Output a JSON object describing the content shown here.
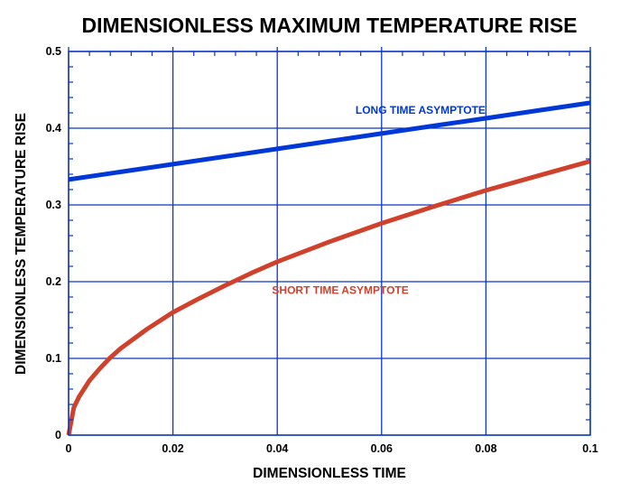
{
  "chart_data": {
    "type": "line",
    "title": "DIMENSIONLESS MAXIMUM TEMPERATURE RISE",
    "xlabel": "DIMENSIONLESS TIME",
    "ylabel": "DIMENSIONLESS TEMPERATURE RISE",
    "xlim": [
      0,
      0.1
    ],
    "ylim": [
      0,
      0.5
    ],
    "x_ticks": [
      0,
      0.02,
      0.04,
      0.06,
      0.08,
      0.1
    ],
    "x_tick_labels": [
      "0",
      "0.02",
      "0.04",
      "0.06",
      "0.08",
      "0.1"
    ],
    "y_ticks": [
      0,
      0.1,
      0.2,
      0.3,
      0.4,
      0.5
    ],
    "y_tick_labels": [
      "0",
      "0.1",
      "0.2",
      "0.3",
      "0.4",
      "0.5"
    ],
    "grid": true,
    "colors": {
      "grid": "#0a36c4",
      "long": "#0038d8",
      "short": "#d0412c"
    },
    "series": [
      {
        "name": "LONG TIME ASYMPTOTE",
        "x": [
          0,
          0.01,
          0.02,
          0.03,
          0.04,
          0.05,
          0.06,
          0.07,
          0.08,
          0.09,
          0.1
        ],
        "y": [
          0.333,
          0.343,
          0.353,
          0.363,
          0.373,
          0.383,
          0.393,
          0.403,
          0.413,
          0.423,
          0.433
        ]
      },
      {
        "name": "SHORT TIME ASYMPTOTE",
        "x": [
          0,
          0.001,
          0.002,
          0.004,
          0.006,
          0.008,
          0.01,
          0.015,
          0.02,
          0.025,
          0.03,
          0.035,
          0.04,
          0.05,
          0.06,
          0.07,
          0.08,
          0.09,
          0.1
        ],
        "y": [
          0,
          0.036,
          0.05,
          0.071,
          0.087,
          0.101,
          0.113,
          0.138,
          0.16,
          0.178,
          0.195,
          0.211,
          0.226,
          0.252,
          0.276,
          0.298,
          0.319,
          0.338,
          0.357
        ]
      }
    ],
    "annotations": [
      {
        "text": "LONG TIME ASYMPTOTE",
        "x": 0.055,
        "y": 0.419,
        "series": "long"
      },
      {
        "text": "SHORT TIME ASYMPTOTE",
        "x": 0.039,
        "y": 0.184,
        "series": "short"
      }
    ]
  }
}
